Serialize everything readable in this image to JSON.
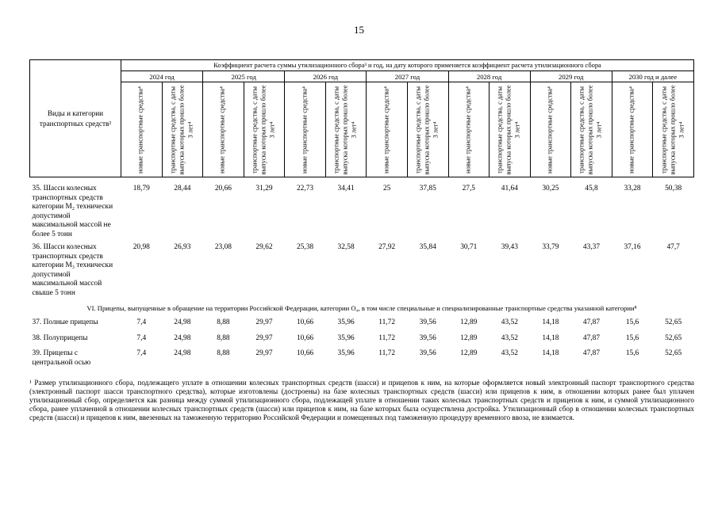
{
  "page": {
    "number": "15"
  },
  "table": {
    "title": "Коэффициент расчета суммы утилизационного сбора³ и год, на дату которого применяется коэффициент расчета утилизационного сбора",
    "left_header": "Виды и категории транспортных средств²",
    "years": [
      "2024 год",
      "2025 год",
      "2026 год",
      "2027 год",
      "2028 год",
      "2029 год",
      "2030  год и далее"
    ],
    "col_new": "новые транспортные средства⁴",
    "col_used": "транспортные средства, с даты выпуска которых прошло более 3 лет⁴",
    "section_header": "VI. Прицепы, выпущенные в обращение на территории Российской Федерации, категории О₄, в том числе специальные и специализированные транспортные средства указанной категории⁸",
    "rows": [
      {
        "label": "35. Шасси колесных транспортных средств категории М₂ технически допустимой максимальной массой не более 5 тонн",
        "values": [
          "18,79",
          "28,44",
          "20,66",
          "31,29",
          "22,73",
          "34,41",
          "25",
          "37,85",
          "27,5",
          "41,64",
          "30,25",
          "45,8",
          "33,28",
          "50,38"
        ]
      },
      {
        "label": "36. Шасси колесных транспортных средств категории М₃ технически допустимой максимальной массой свыше 5 тонн",
        "values": [
          "20,98",
          "26,93",
          "23,08",
          "29,62",
          "25,38",
          "32,58",
          "27,92",
          "35,84",
          "30,71",
          "39,43",
          "33,79",
          "43,37",
          "37,16",
          "47,7"
        ]
      },
      {
        "label": "37. Полные прицепы",
        "values": [
          "7,4",
          "24,98",
          "8,88",
          "29,97",
          "10,66",
          "35,96",
          "11,72",
          "39,56",
          "12,89",
          "43,52",
          "14,18",
          "47,87",
          "15,6",
          "52,65"
        ]
      },
      {
        "label": "38. Полуприцепы",
        "values": [
          "7,4",
          "24,98",
          "8,88",
          "29,97",
          "10,66",
          "35,96",
          "11,72",
          "39,56",
          "12,89",
          "43,52",
          "14,18",
          "47,87",
          "15,6",
          "52,65"
        ]
      },
      {
        "label": "39. Прицепы с центральной осью",
        "values": [
          "7,4",
          "24,98",
          "8,88",
          "29,97",
          "10,66",
          "35,96",
          "11,72",
          "39,56",
          "12,89",
          "43,52",
          "14,18",
          "47,87",
          "15,6",
          "52,65"
        ]
      }
    ]
  },
  "footnote": "¹ Размер утилизационного сбора, подлежащего уплате в отношении колесных транспортных средств (шасси) и прицепов к ним, на которые оформляется новый электронный паспорт транспортного средства (электронный паспорт шасси транспортного средства), которые изготовлены (достроены) на базе колесных транспортных средств (шасси) или прицепов к ним, в отношении которых ранее был уплачен утилизационный сбор, определяется как разница между суммой утилизационного сбора, подлежащей уплате в отношении таких колесных транспортных средств и прицепов к ним, и суммой утилизационного сбора, ранее уплаченной в отношении колесных транспортных средств (шасси) или прицепов к ним, на базе которых была осуществлена достройка. Утилизационный сбор в отношении колесных транспортных средств (шасси) и прицепов к ним, ввезенных на таможенную территорию Российской Федерации и помещенных под таможенную процедуру временного ввоза, не взимается."
}
